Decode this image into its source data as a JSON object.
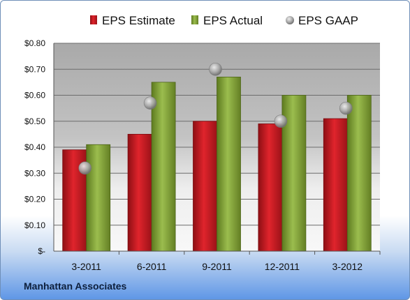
{
  "footer": {
    "company": "Manhattan Associates"
  },
  "colors": {
    "estimate": "#c0141c",
    "actual": "#7a9c2e",
    "gaap": "#9a9a9a"
  },
  "chart_data": {
    "type": "bar",
    "categories": [
      "3-2011",
      "6-2011",
      "9-2011",
      "12-2011",
      "3-2012"
    ],
    "series": [
      {
        "name": "EPS Estimate",
        "kind": "bar",
        "values": [
          0.39,
          0.45,
          0.5,
          0.49,
          0.51
        ]
      },
      {
        "name": "EPS Actual",
        "kind": "bar",
        "values": [
          0.41,
          0.65,
          0.67,
          0.6,
          0.6
        ]
      },
      {
        "name": "EPS GAAP",
        "kind": "marker",
        "values": [
          0.32,
          0.57,
          0.7,
          0.5,
          0.55
        ]
      }
    ],
    "ylim": [
      0,
      0.8
    ],
    "yticks": [
      0,
      0.1,
      0.2,
      0.3,
      0.4,
      0.5,
      0.6,
      0.7,
      0.8
    ],
    "ytick_labels": [
      "$-",
      "$0.10",
      "$0.20",
      "$0.30",
      "$0.40",
      "$0.50",
      "$0.60",
      "$0.70",
      "$0.80"
    ],
    "legend_position": "top",
    "grid": true
  }
}
